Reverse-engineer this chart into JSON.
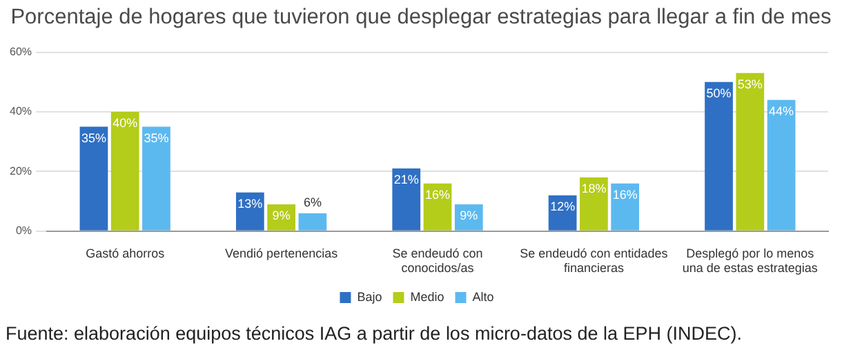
{
  "chart_data": {
    "type": "bar",
    "title": "Porcentaje de hogares que tuvieron que desplegar estrategias para llegar a fin de mes",
    "categories": [
      "Gastó ahorros",
      "Vendió pertenencias",
      "Se endeudó con conocidos/as",
      "Se endeudó con entidades financieras",
      "Desplegó por lo menos una de estas estrategias"
    ],
    "series": [
      {
        "name": "Bajo",
        "color": "#2f70c4",
        "values": [
          35,
          13,
          21,
          12,
          50
        ],
        "value_labels": [
          "35%",
          "13%",
          "21%",
          "12%",
          "50%"
        ]
      },
      {
        "name": "Medio",
        "color": "#b4cc1a",
        "values": [
          40,
          9,
          16,
          18,
          53
        ],
        "value_labels": [
          "40%",
          "9%",
          "16%",
          "18%",
          "53%"
        ]
      },
      {
        "name": "Alto",
        "color": "#5cb9f0",
        "values": [
          35,
          6,
          9,
          16,
          44
        ],
        "value_labels": [
          "35%",
          "6%",
          "9%",
          "16%",
          "44%"
        ]
      }
    ],
    "ylim": [
      0,
      60
    ],
    "yticks": [
      {
        "value": 0,
        "label": "0%"
      },
      {
        "value": 20,
        "label": "20%"
      },
      {
        "value": 40,
        "label": "40%"
      },
      {
        "value": 60,
        "label": "60%"
      }
    ],
    "grid": "y",
    "legend": "bottom",
    "annotations": [
      "Fuente: elaboración equipos técnicos IAG a partir de los micro-datos de la EPH (INDEC)."
    ]
  }
}
